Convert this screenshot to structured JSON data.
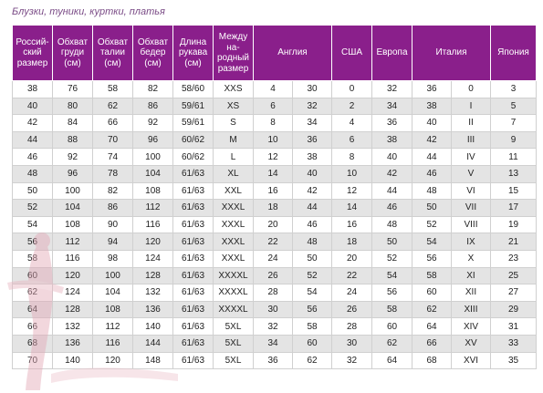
{
  "caption": "Блузки, туники, куртки, платья",
  "headers": [
    "Россий-ский размер",
    "Обхват груди (см)",
    "Обхват талии (см)",
    "Обхват бедер (см)",
    "Длина рукава (см)",
    "Между на-родный размер",
    "Англия",
    "США",
    "Европа",
    "Италия",
    "Япония"
  ],
  "rows": [
    [
      "38",
      "76",
      "58",
      "82",
      "58/60",
      "XXS",
      "4",
      "30",
      "0",
      "32",
      "36",
      "0",
      "3"
    ],
    [
      "40",
      "80",
      "62",
      "86",
      "59/61",
      "XS",
      "6",
      "32",
      "2",
      "34",
      "38",
      "I",
      "5"
    ],
    [
      "42",
      "84",
      "66",
      "92",
      "59/61",
      "S",
      "8",
      "34",
      "4",
      "36",
      "40",
      "II",
      "7"
    ],
    [
      "44",
      "88",
      "70",
      "96",
      "60/62",
      "M",
      "10",
      "36",
      "6",
      "38",
      "42",
      "III",
      "9"
    ],
    [
      "46",
      "92",
      "74",
      "100",
      "60/62",
      "L",
      "12",
      "38",
      "8",
      "40",
      "44",
      "IV",
      "11"
    ],
    [
      "48",
      "96",
      "78",
      "104",
      "61/63",
      "XL",
      "14",
      "40",
      "10",
      "42",
      "46",
      "V",
      "13"
    ],
    [
      "50",
      "100",
      "82",
      "108",
      "61/63",
      "XXL",
      "16",
      "42",
      "12",
      "44",
      "48",
      "VI",
      "15"
    ],
    [
      "52",
      "104",
      "86",
      "112",
      "61/63",
      "XXXL",
      "18",
      "44",
      "14",
      "46",
      "50",
      "VII",
      "17"
    ],
    [
      "54",
      "108",
      "90",
      "116",
      "61/63",
      "XXXL",
      "20",
      "46",
      "16",
      "48",
      "52",
      "VIII",
      "19"
    ],
    [
      "56",
      "112",
      "94",
      "120",
      "61/63",
      "XXXL",
      "22",
      "48",
      "18",
      "50",
      "54",
      "IX",
      "21"
    ],
    [
      "58",
      "116",
      "98",
      "124",
      "61/63",
      "XXXL",
      "24",
      "50",
      "20",
      "52",
      "56",
      "X",
      "23"
    ],
    [
      "60",
      "120",
      "100",
      "128",
      "61/63",
      "XXXXL",
      "26",
      "52",
      "22",
      "54",
      "58",
      "XI",
      "25"
    ],
    [
      "62",
      "124",
      "104",
      "132",
      "61/63",
      "XXXXL",
      "28",
      "54",
      "24",
      "56",
      "60",
      "XII",
      "27"
    ],
    [
      "64",
      "128",
      "108",
      "136",
      "61/63",
      "XXXXL",
      "30",
      "56",
      "26",
      "58",
      "62",
      "XIII",
      "29"
    ],
    [
      "66",
      "132",
      "112",
      "140",
      "61/63",
      "5XL",
      "32",
      "58",
      "28",
      "60",
      "64",
      "XIV",
      "31"
    ],
    [
      "68",
      "136",
      "116",
      "144",
      "61/63",
      "5XL",
      "34",
      "60",
      "30",
      "62",
      "66",
      "XV",
      "33"
    ],
    [
      "70",
      "140",
      "120",
      "148",
      "61/63",
      "5XL",
      "36",
      "62",
      "32",
      "64",
      "68",
      "XVI",
      "35"
    ]
  ]
}
